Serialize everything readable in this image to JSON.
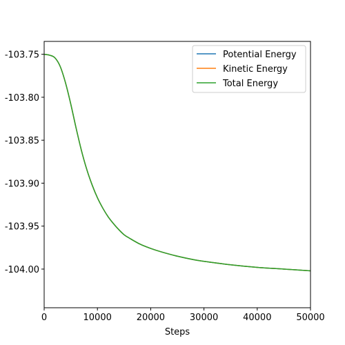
{
  "chart_data": {
    "type": "line",
    "xlabel": "Steps",
    "ylabel": "",
    "xlim": [
      0,
      50000
    ],
    "ylim": [
      -104.045,
      -103.735
    ],
    "xticks": [
      0,
      10000,
      20000,
      30000,
      40000,
      50000
    ],
    "xtick_labels": [
      "0",
      "10000",
      "20000",
      "30000",
      "40000",
      "50000"
    ],
    "yticks": [
      -103.75,
      -103.8,
      -103.85,
      -103.9,
      -103.95,
      -104.0
    ],
    "ytick_labels": [
      "-103.75",
      "-103.80",
      "-103.85",
      "-103.90",
      "-103.95",
      "-104.00"
    ],
    "grid": false,
    "legend_position": "top-right",
    "series": [
      {
        "name": "Potential Energy",
        "color": "#1f77b4",
        "x": [
          0,
          1000,
          2000,
          3000,
          4000,
          5000,
          6000,
          7000,
          8000,
          9000,
          10000,
          11000,
          12000,
          13000,
          14000,
          15000,
          16000,
          18000,
          20000,
          22000,
          25000,
          28000,
          30000,
          35000,
          40000,
          45000,
          50000
        ],
        "y": [
          -103.75,
          -103.751,
          -103.754,
          -103.764,
          -103.783,
          -103.808,
          -103.836,
          -103.862,
          -103.884,
          -103.902,
          -103.917,
          -103.929,
          -103.939,
          -103.947,
          -103.954,
          -103.96,
          -103.964,
          -103.971,
          -103.976,
          -103.98,
          -103.985,
          -103.989,
          -103.991,
          -103.995,
          -103.998,
          -104.0,
          -104.002
        ]
      },
      {
        "name": "Kinetic Energy",
        "color": "#ff7f0e",
        "x": [
          0,
          1000,
          2000,
          3000,
          4000,
          5000,
          6000,
          7000,
          8000,
          9000,
          10000,
          11000,
          12000,
          13000,
          14000,
          15000,
          16000,
          18000,
          20000,
          22000,
          25000,
          28000,
          30000,
          35000,
          40000,
          45000,
          50000
        ],
        "y": [
          -103.75,
          -103.751,
          -103.754,
          -103.764,
          -103.783,
          -103.808,
          -103.836,
          -103.862,
          -103.884,
          -103.902,
          -103.917,
          -103.929,
          -103.939,
          -103.947,
          -103.954,
          -103.96,
          -103.964,
          -103.971,
          -103.976,
          -103.98,
          -103.985,
          -103.989,
          -103.991,
          -103.995,
          -103.998,
          -104.0,
          -104.002
        ]
      },
      {
        "name": "Total Energy",
        "color": "#2ca02c",
        "x": [
          0,
          1000,
          2000,
          3000,
          4000,
          5000,
          6000,
          7000,
          8000,
          9000,
          10000,
          11000,
          12000,
          13000,
          14000,
          15000,
          16000,
          18000,
          20000,
          22000,
          25000,
          28000,
          30000,
          35000,
          40000,
          45000,
          50000
        ],
        "y": [
          -103.75,
          -103.751,
          -103.754,
          -103.764,
          -103.783,
          -103.808,
          -103.836,
          -103.862,
          -103.884,
          -103.902,
          -103.917,
          -103.929,
          -103.939,
          -103.947,
          -103.954,
          -103.96,
          -103.964,
          -103.971,
          -103.976,
          -103.98,
          -103.985,
          -103.989,
          -103.991,
          -103.995,
          -103.998,
          -104.0,
          -104.002
        ]
      }
    ]
  }
}
